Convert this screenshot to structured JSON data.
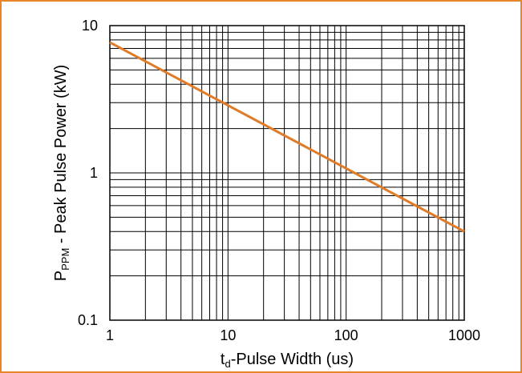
{
  "chart_data": {
    "type": "line",
    "xscale": "log",
    "yscale": "log",
    "xlim": [
      1,
      1000
    ],
    "ylim": [
      0.1,
      10
    ],
    "grid": true,
    "xticks": [
      {
        "value": 1,
        "label": "1"
      },
      {
        "value": 10,
        "label": "10"
      },
      {
        "value": 100,
        "label": "100"
      },
      {
        "value": 1000,
        "label": "1000"
      }
    ],
    "yticks": [
      {
        "value": 0.1,
        "label": "0.1"
      },
      {
        "value": 1,
        "label": "1"
      },
      {
        "value": 10,
        "label": "10"
      }
    ],
    "xlabel": {
      "main": "t",
      "sub": "d",
      "rest": "-Pulse Width (us)"
    },
    "ylabel": {
      "main": "P",
      "sub": "PPM",
      "rest": " - Peak Pulse Power (kW)"
    },
    "series": [
      {
        "color": "#e07b28",
        "x": [
          1,
          1000
        ],
        "y": [
          7.7,
          0.4
        ]
      }
    ]
  }
}
